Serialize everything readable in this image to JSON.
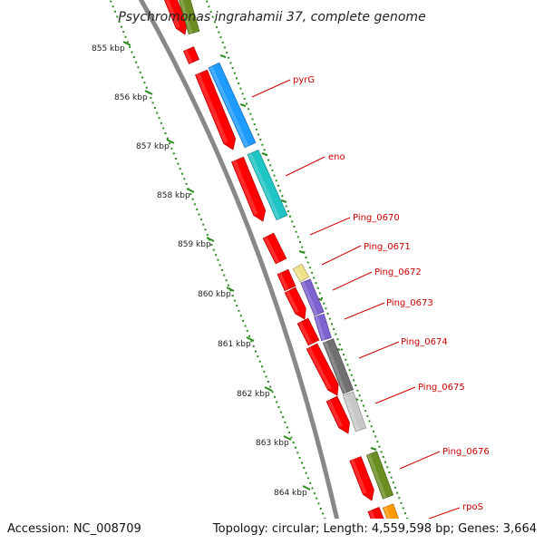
{
  "title": "Psychromonas ingrahamii 37, complete genome",
  "footer": {
    "accession": "Accession: NC_008709",
    "topology": "Topology: circular; Length: 4,559,598 bp; Genes: 3,664"
  },
  "scale": {
    "unit": "kbp",
    "ticks": [
      "855 kbp",
      "856 kbp",
      "857 kbp",
      "858 kbp",
      "859 kbp",
      "860 kbp",
      "861 kbp",
      "862 kbp",
      "863 kbp",
      "864 kbp"
    ]
  },
  "gene_labels": [
    "pyrG",
    "eno",
    "Ping_0670",
    "Ping_0671",
    "Ping_0672",
    "Ping_0673",
    "Ping_0674",
    "Ping_0675",
    "Ping_0676",
    "rpoS"
  ],
  "colors": {
    "cds": "#ff0000",
    "backbone": "#888888",
    "tick": "#2e8b22",
    "label": "#cc0000",
    "pyrG": "#1e9bff",
    "eno": "#1fc4c4",
    "Ping_0671": "#f0e08c",
    "Ping_0672": "#7d62d0",
    "Ping_0673": "#7d62d0",
    "Ping_0674": "#707070",
    "Ping_0675": "#c8c8c8",
    "Ping_0676": "#6b8e23",
    "rpoS": "#ff9900"
  }
}
